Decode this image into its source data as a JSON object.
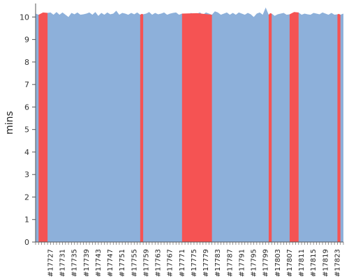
{
  "chart_data": {
    "type": "area",
    "ylabel": "mins",
    "xlabel": "",
    "ylim": [
      0,
      10.6
    ],
    "yticks": [
      0,
      1,
      2,
      3,
      4,
      5,
      6,
      7,
      8,
      9,
      10
    ],
    "grid": true,
    "build_start": 17722,
    "build_end": 17825,
    "x_tick_labels": [
      "#17727",
      "#17731",
      "#17735",
      "#17739",
      "#17743",
      "#17747",
      "#17751",
      "#17755",
      "#17759",
      "#17763",
      "#17767",
      "#17771",
      "#17775",
      "#17779",
      "#17783",
      "#17787",
      "#17791",
      "#17795",
      "#17799",
      "#17803",
      "#17807",
      "#17811",
      "#17815",
      "#17819",
      "#17823"
    ],
    "series": [
      {
        "color": "#8db0da",
        "values": [
          10.15,
          10.1,
          10.12,
          10.15,
          10.18,
          10.2,
          10.1,
          10.22,
          10.1,
          10.2,
          10.1,
          10.0,
          10.18,
          10.12,
          10.2,
          10.1,
          10.12,
          10.15,
          10.2,
          10.1,
          10.22,
          10.05,
          10.18,
          10.1,
          10.2,
          10.12,
          10.15,
          10.28,
          10.1,
          10.18,
          10.15,
          10.1,
          10.18,
          10.12,
          10.2,
          10.1,
          10.12,
          10.15,
          10.22,
          10.1,
          10.18,
          10.12,
          10.15,
          10.2,
          10.1,
          10.15,
          10.18,
          10.2,
          10.1,
          10.15,
          10.1,
          10.05,
          10.18,
          10.12,
          10.15,
          10.2,
          10.1,
          10.2,
          10.15,
          10.1,
          10.25,
          10.2,
          10.1,
          10.15,
          10.2,
          10.1,
          10.18,
          10.1,
          10.2,
          10.15,
          10.1,
          10.18,
          10.12,
          10.0,
          10.15,
          10.2,
          10.1,
          10.42,
          10.1,
          10.15,
          10.05,
          10.12,
          10.15,
          10.18,
          10.1,
          10.12,
          10.1,
          10.15,
          10.2,
          10.1,
          10.15,
          10.12,
          10.1,
          10.18,
          10.15,
          10.12,
          10.2,
          10.15,
          10.1,
          10.18,
          10.1,
          10.12,
          10.1,
          10.15
        ]
      }
    ],
    "failed_builds": [
      {
        "from": 17723,
        "to": 17726,
        "color": "#f55353"
      },
      {
        "from": 17757,
        "to": 17758,
        "color": "#f55353"
      },
      {
        "from": 17771,
        "to": 17781,
        "color": "#f55353"
      },
      {
        "from": 17800,
        "to": 17801,
        "color": "#f55353"
      },
      {
        "from": 17807,
        "to": 17810,
        "color": "#f55353"
      },
      {
        "from": 17823,
        "to": 17824,
        "color": "#f55353"
      }
    ]
  }
}
